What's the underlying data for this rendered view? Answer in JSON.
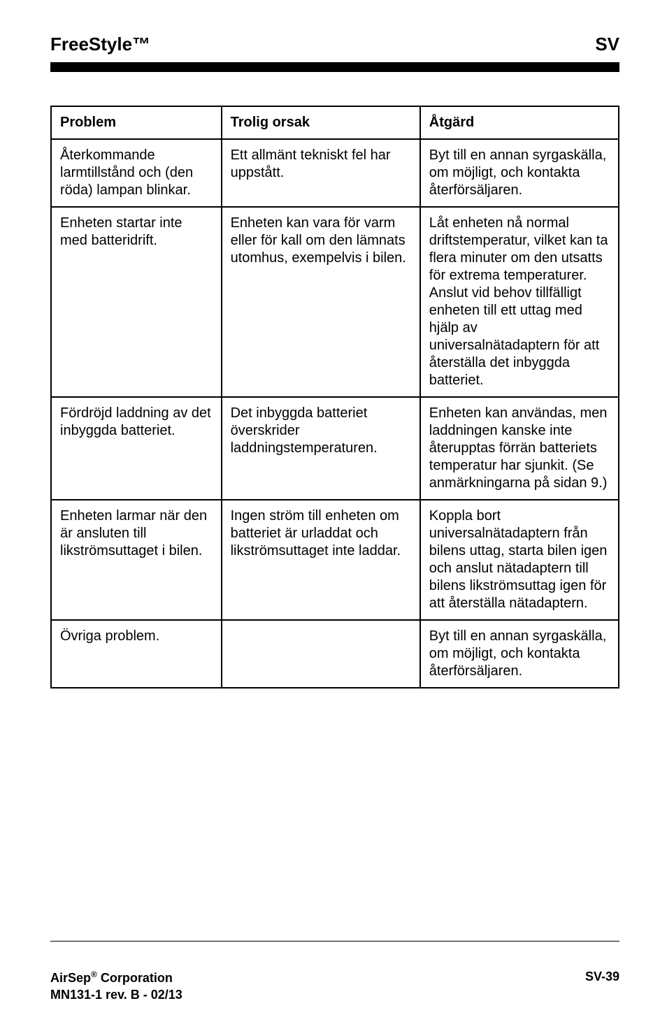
{
  "header": {
    "product": "FreeStyle™",
    "lang": "SV"
  },
  "table": {
    "columns": [
      "Problem",
      "Trolig orsak",
      "Åtgärd"
    ],
    "rows": [
      {
        "problem": "Återkommande larmtillstånd och (den röda) lampan blinkar.",
        "cause": "Ett allmänt tekniskt fel har uppstått.",
        "action": "Byt till en annan syrgaskälla, om möjligt, och kontakta återförsäljaren."
      },
      {
        "problem": "Enheten startar inte med batteridrift.",
        "cause": "Enheten kan vara för varm eller för kall om den lämnats utomhus, exempelvis i bilen.",
        "action": "Låt enheten nå normal driftstemperatur, vilket kan ta flera minuter om den utsatts för extrema temperaturer. Anslut vid behov tillfälligt enheten till ett uttag med hjälp av universalnätadaptern för att återställa det inbyggda batteriet."
      },
      {
        "problem": "Fördröjd laddning av det inbyggda batteriet.",
        "cause": "Det inbyggda batteriet överskrider laddningstemperaturen.",
        "action": "Enheten kan användas, men laddningen kanske inte återupptas förrän batteriets temperatur har sjunkit. (Se anmärkningarna på sidan 9.)"
      },
      {
        "problem": "Enheten larmar när den är ansluten till likströmsuttaget i bilen.",
        "cause": "Ingen ström till enheten om batteriet är urladdat och likströmsuttaget inte laddar.",
        "action": "Koppla bort universalnätadaptern från bilens uttag, starta bilen igen och anslut nätadaptern till bilens likströmsuttag igen för att återställa nätadaptern."
      },
      {
        "problem": "Övriga problem.",
        "cause": "",
        "action": "Byt till en annan syrgaskälla, om möjligt, och kontakta återförsäljaren."
      }
    ]
  },
  "footer": {
    "company_line1_pre": "AirSep",
    "company_line1_post": " Corporation",
    "company_line2": "MN131-1 rev. B - 02/13",
    "page_no": "SV-39"
  },
  "colors": {
    "text": "#000000",
    "bg": "#ffffff",
    "bar": "#000000",
    "border": "#000000"
  }
}
